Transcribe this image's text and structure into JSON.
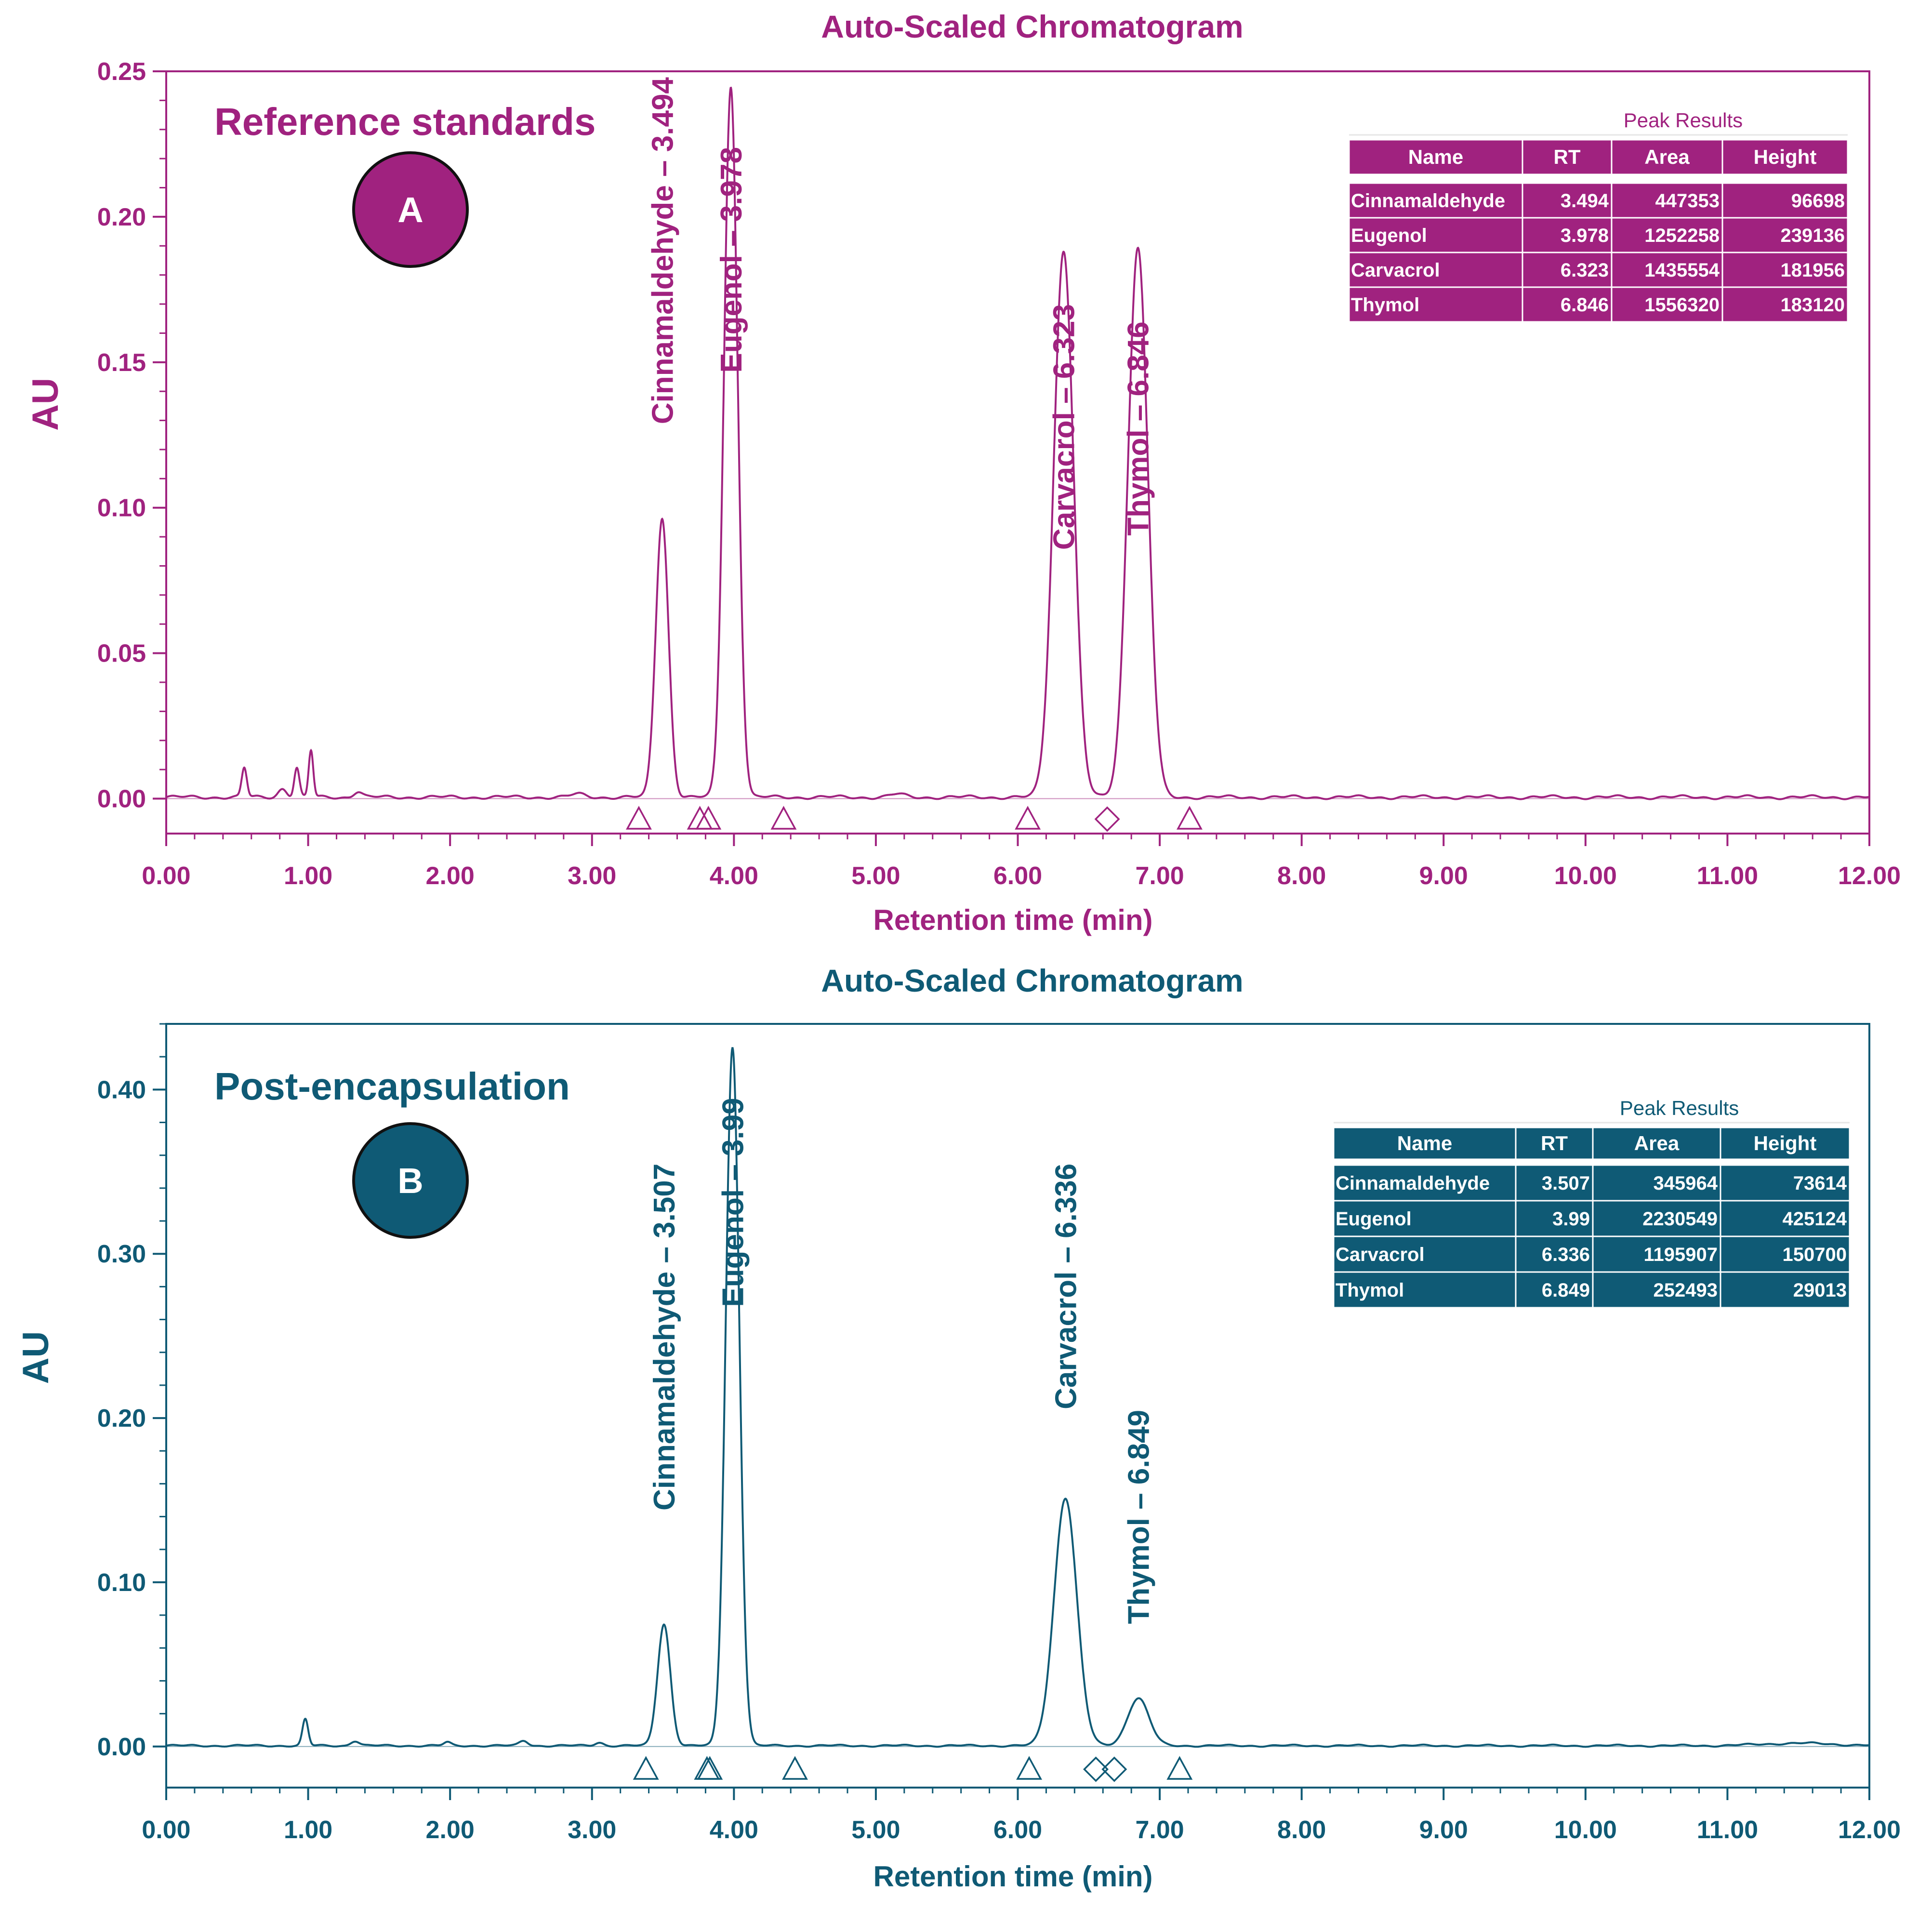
{
  "chart_data": [
    {
      "type": "line",
      "panel_id": "A",
      "title": "Auto-Scaled Chromatogram",
      "panel_label": "Reference standards",
      "xlabel": "Retention time (min)",
      "ylabel": "AU",
      "xlim": [
        0,
        12
      ],
      "ylim": [
        -0.012,
        0.25
      ],
      "x_ticks": [
        "0.00",
        "1.00",
        "2.00",
        "3.00",
        "4.00",
        "5.00",
        "6.00",
        "7.00",
        "8.00",
        "9.00",
        "10.00",
        "11.00",
        "12.00"
      ],
      "y_ticks": [
        "0.00",
        "0.05",
        "0.10",
        "0.15",
        "0.20",
        "0.25"
      ],
      "color": "#a0227f",
      "baseline": 0.0005,
      "peaks": [
        {
          "rt": 0.55,
          "h": 0.01,
          "w": 0.018
        },
        {
          "rt": 0.82,
          "h": 0.003,
          "w": 0.03
        },
        {
          "rt": 0.92,
          "h": 0.01,
          "w": 0.018
        },
        {
          "rt": 1.02,
          "h": 0.016,
          "w": 0.016
        },
        {
          "rt": 1.35,
          "h": 0.002,
          "w": 0.03
        },
        {
          "rt": 2.9,
          "h": 0.001,
          "w": 0.05
        },
        {
          "rt": 3.494,
          "h": 0.096,
          "w": 0.045
        },
        {
          "rt": 3.978,
          "h": 0.244,
          "w": 0.048
        },
        {
          "rt": 5.15,
          "h": 0.001,
          "w": 0.05
        },
        {
          "rt": 6.323,
          "h": 0.188,
          "w": 0.07
        },
        {
          "rt": 6.846,
          "h": 0.189,
          "w": 0.07
        }
      ],
      "peak_labels": [
        {
          "text": "Cinnamaldehyde – 3.494",
          "rt": 3.494,
          "y_top": 0.248
        },
        {
          "text": "Eugenol – 3.978",
          "rt": 3.978,
          "y_top": 0.224
        },
        {
          "text": "Carvacrol – 6.323",
          "rt": 6.323,
          "y_top": 0.17
        },
        {
          "text": "Thymol – 6.846",
          "rt": 6.846,
          "y_top": 0.164
        }
      ],
      "markers": [
        {
          "rt": 3.33,
          "shape": "triangle"
        },
        {
          "rt": 3.76,
          "shape": "triangle"
        },
        {
          "rt": 3.82,
          "shape": "triangle"
        },
        {
          "rt": 4.35,
          "shape": "triangle"
        },
        {
          "rt": 6.07,
          "shape": "triangle"
        },
        {
          "rt": 6.63,
          "shape": "diamond"
        },
        {
          "rt": 7.21,
          "shape": "triangle"
        }
      ],
      "table": {
        "caption": "Peak Results",
        "columns": [
          "Name",
          "RT",
          "Area",
          "Height"
        ],
        "rows": [
          [
            "Cinnamaldehyde",
            "3.494",
            "447353",
            "96698"
          ],
          [
            "Eugenol",
            "3.978",
            "1252258",
            "239136"
          ],
          [
            "Carvacrol",
            "6.323",
            "1435554",
            "181956"
          ],
          [
            "Thymol",
            "6.846",
            "1556320",
            "183120"
          ]
        ]
      }
    },
    {
      "type": "line",
      "panel_id": "B",
      "title": "Auto-Scaled Chromatogram",
      "panel_label": "Post-encapsulation",
      "xlabel": "Retention time (min)",
      "ylabel": "AU",
      "xlim": [
        0,
        12
      ],
      "ylim": [
        -0.025,
        0.44
      ],
      "x_ticks": [
        "0.00",
        "1.00",
        "2.00",
        "3.00",
        "4.00",
        "5.00",
        "6.00",
        "7.00",
        "8.00",
        "9.00",
        "10.00",
        "11.00",
        "12.00"
      ],
      "y_ticks": [
        "0.00",
        "0.10",
        "0.20",
        "0.30",
        "0.40"
      ],
      "color": "#0f5a75",
      "baseline": 0.0005,
      "peaks": [
        {
          "rt": 0.98,
          "h": 0.016,
          "w": 0.02
        },
        {
          "rt": 1.33,
          "h": 0.003,
          "w": 0.03
        },
        {
          "rt": 1.98,
          "h": 0.002,
          "w": 0.025
        },
        {
          "rt": 2.52,
          "h": 0.003,
          "w": 0.03
        },
        {
          "rt": 3.05,
          "h": 0.002,
          "w": 0.03
        },
        {
          "rt": 3.507,
          "h": 0.074,
          "w": 0.045
        },
        {
          "rt": 3.99,
          "h": 0.425,
          "w": 0.048
        },
        {
          "rt": 6.336,
          "h": 0.151,
          "w": 0.08
        },
        {
          "rt": 6.849,
          "h": 0.029,
          "w": 0.075
        },
        {
          "rt": 11.5,
          "h": 0.0015,
          "w": 0.25
        }
      ],
      "peak_labels": [
        {
          "text": "Cinnamaldehyde – 3.507",
          "rt": 3.507,
          "y_top": 0.355
        },
        {
          "text": "Eugenol – 3.99",
          "rt": 3.99,
          "y_top": 0.395
        },
        {
          "text": "Carvacrol – 6.336",
          "rt": 6.336,
          "y_top": 0.355
        },
        {
          "text": "Thymol – 6.849",
          "rt": 6.849,
          "y_top": 0.205
        }
      ],
      "markers": [
        {
          "rt": 3.38,
          "shape": "triangle"
        },
        {
          "rt": 3.81,
          "shape": "triangle"
        },
        {
          "rt": 3.83,
          "shape": "triangle"
        },
        {
          "rt": 4.43,
          "shape": "triangle"
        },
        {
          "rt": 6.08,
          "shape": "triangle"
        },
        {
          "rt": 6.55,
          "shape": "diamond"
        },
        {
          "rt": 6.68,
          "shape": "diamond"
        },
        {
          "rt": 7.14,
          "shape": "triangle"
        }
      ],
      "table": {
        "caption": "Peak Results",
        "columns": [
          "Name",
          "RT",
          "Area",
          "Height"
        ],
        "rows": [
          [
            "Cinnamaldehyde",
            "3.507",
            "345964",
            "73614"
          ],
          [
            "Eugenol",
            "3.99",
            "2230549",
            "425124"
          ],
          [
            "Carvacrol",
            "6.336",
            "1195907",
            "150700"
          ],
          [
            "Thymol",
            "6.849",
            "252493",
            "29013"
          ]
        ]
      }
    }
  ]
}
